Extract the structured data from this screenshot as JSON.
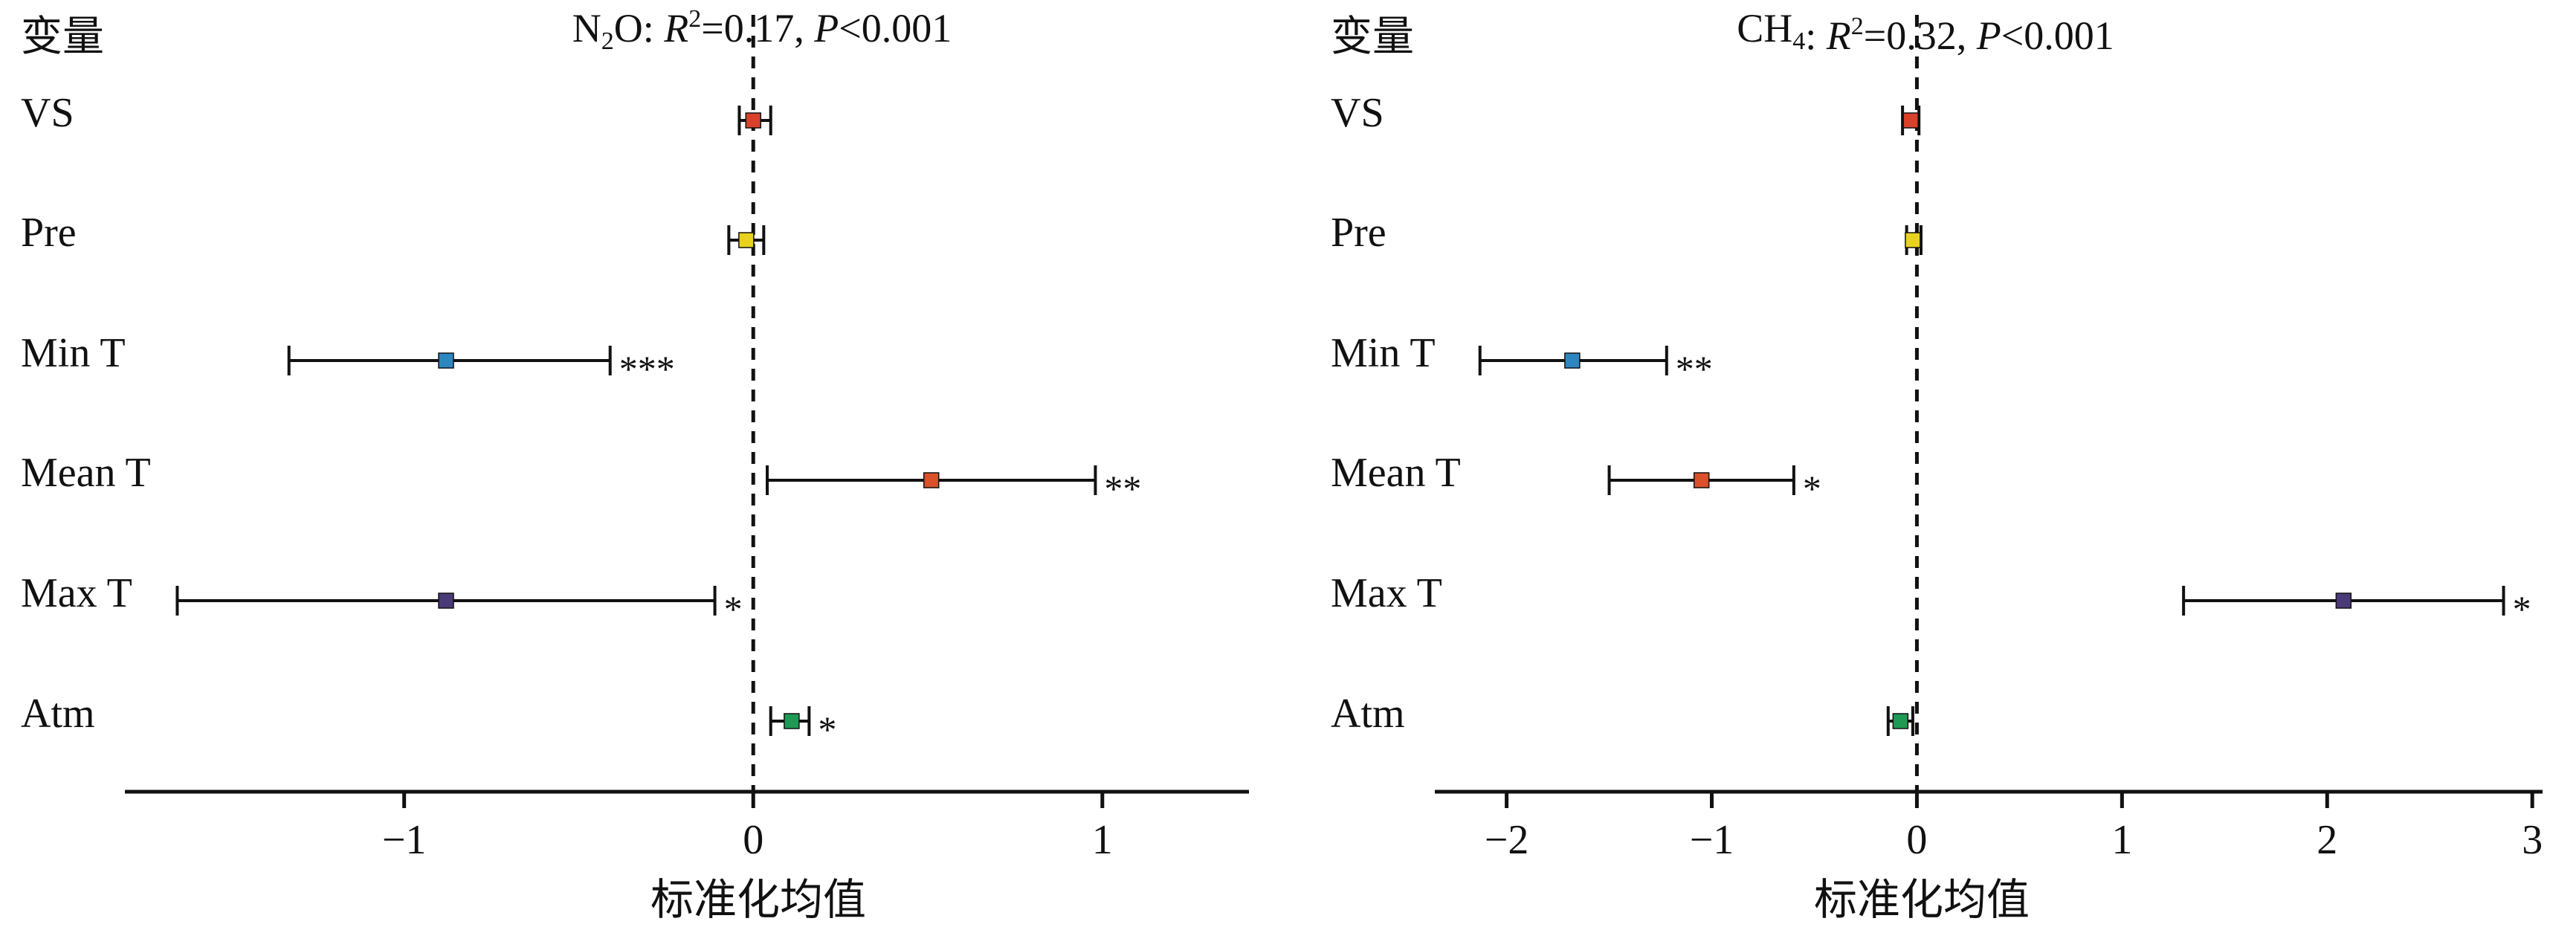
{
  "chart_data": [
    {
      "type": "forest",
      "title": {
        "gas_main": "N",
        "gas_sub": "2",
        "gas_rest": "O",
        "r2_text": "=0.17, ",
        "p_text": "<0.001"
      },
      "y_header": "变量",
      "xlabel": "标准化均值",
      "xlim": [
        -1.8,
        1.42
      ],
      "xticks": [
        -1,
        0,
        1
      ],
      "tick_labels": [
        "−1",
        "0",
        "1"
      ],
      "variables": [
        {
          "name": "VS",
          "estimate": 0.0,
          "low": -0.04,
          "high": 0.05,
          "sig": "",
          "color": "#d9412b"
        },
        {
          "name": "Pre",
          "estimate": -0.02,
          "low": -0.07,
          "high": 0.03,
          "sig": "",
          "color": "#e8d21f"
        },
        {
          "name": "Min T",
          "estimate": -0.88,
          "low": -1.33,
          "high": -0.41,
          "sig": "***",
          "color": "#2e86c1"
        },
        {
          "name": "Mean T",
          "estimate": 0.51,
          "low": 0.04,
          "high": 0.98,
          "sig": "**",
          "color": "#d9512b"
        },
        {
          "name": "Max T",
          "estimate": -0.88,
          "low": -1.65,
          "high": -0.11,
          "sig": "*",
          "color": "#4b3a78"
        },
        {
          "name": "Atm",
          "estimate": 0.11,
          "low": 0.05,
          "high": 0.16,
          "sig": "*",
          "color": "#1f9a55"
        }
      ]
    },
    {
      "type": "forest",
      "title": {
        "gas_main": "CH",
        "gas_sub": "4",
        "gas_rest": "",
        "r2_text": "=0.32, ",
        "p_text": "<0.001"
      },
      "y_header": "变量",
      "xlabel": "标准化均值",
      "xlim": [
        -2.35,
        3.05
      ],
      "xticks": [
        -2,
        -1,
        0,
        1,
        2,
        3
      ],
      "tick_labels": [
        "−2",
        "−1",
        "0",
        "1",
        "2",
        "3"
      ],
      "variables": [
        {
          "name": "VS",
          "estimate": -0.03,
          "low": -0.07,
          "high": 0.01,
          "sig": "",
          "color": "#d9412b"
        },
        {
          "name": "Pre",
          "estimate": -0.02,
          "low": -0.05,
          "high": 0.02,
          "sig": "",
          "color": "#e8d21f"
        },
        {
          "name": "Min T",
          "estimate": -1.68,
          "low": -2.13,
          "high": -1.22,
          "sig": "**",
          "color": "#2e86c1"
        },
        {
          "name": "Mean T",
          "estimate": -1.05,
          "low": -1.5,
          "high": -0.6,
          "sig": "*",
          "color": "#d9512b"
        },
        {
          "name": "Max T",
          "estimate": 2.08,
          "low": 1.3,
          "high": 2.86,
          "sig": "*",
          "color": "#4b3a78"
        },
        {
          "name": "Atm",
          "estimate": -0.08,
          "low": -0.14,
          "high": -0.02,
          "sig": "",
          "color": "#1f9a55"
        }
      ]
    }
  ]
}
